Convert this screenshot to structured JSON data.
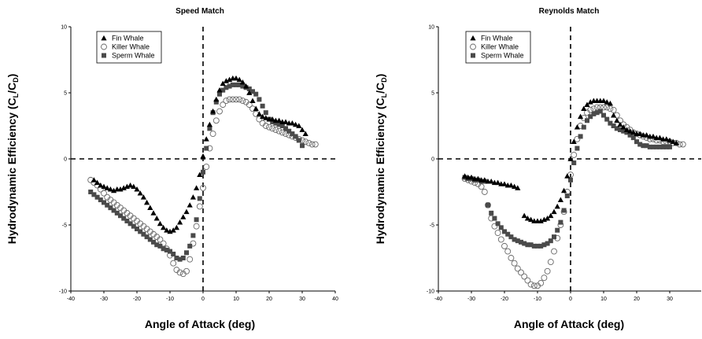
{
  "chart_data": [
    {
      "type": "scatter",
      "title": "Speed Match",
      "xlabel": "Angle of Attack (deg)",
      "ylabel": {
        "main": "Hydrodynamic Efficiency (C",
        "sub1": "L",
        "mid": "/C",
        "sub2": "D",
        "end": ")"
      },
      "xlim": [
        -40,
        40
      ],
      "ylim": [
        -10,
        10
      ],
      "xticks": [
        -40,
        -30,
        -20,
        -10,
        0,
        10,
        20,
        30,
        40
      ],
      "yticks": [
        -10,
        -5,
        0,
        5,
        10
      ],
      "tick_labels_x": [
        "-40",
        "-30",
        "-20",
        "-10",
        "0",
        "10",
        "20",
        "30",
        "40"
      ],
      "tick_labels_y": [
        "-10",
        "-5",
        "0",
        "5",
        "10"
      ],
      "grid": false,
      "reference_lines": {
        "x": 0,
        "y": 0,
        "style": "dashed"
      },
      "legend_position": "top-left",
      "series": [
        {
          "name": "Fin Whale",
          "marker": "triangle",
          "color": "#000000",
          "x": [
            -33,
            -32,
            -31,
            -30,
            -29,
            -28,
            -27,
            -26,
            -25,
            -24,
            -23,
            -22,
            -21,
            -20,
            -19,
            -18,
            -17,
            -16,
            -15,
            -14,
            -13,
            -12,
            -11,
            -10,
            -9,
            -8,
            -7,
            -6,
            -5,
            -4,
            -3,
            -2,
            -1,
            0,
            1,
            2,
            3,
            4,
            5,
            6,
            7,
            8,
            9,
            10,
            11,
            12,
            13,
            14,
            15,
            16,
            17,
            18,
            19,
            20,
            21,
            22,
            23,
            24,
            25,
            26,
            27,
            28,
            29,
            30,
            31
          ],
          "y": [
            -1.6,
            -1.8,
            -2.0,
            -2.1,
            -2.2,
            -2.3,
            -2.4,
            -2.3,
            -2.3,
            -2.2,
            -2.1,
            -2.0,
            -2.1,
            -2.3,
            -2.6,
            -2.9,
            -3.3,
            -3.7,
            -4.1,
            -4.5,
            -4.9,
            -5.2,
            -5.4,
            -5.5,
            -5.4,
            -5.2,
            -4.8,
            -4.4,
            -4.0,
            -3.5,
            -2.9,
            -2.2,
            -1.2,
            0.2,
            1.5,
            2.6,
            3.6,
            4.5,
            5.2,
            5.7,
            5.9,
            6.0,
            6.1,
            6.1,
            6.0,
            5.8,
            5.5,
            5.0,
            4.4,
            3.8,
            3.4,
            3.2,
            3.1,
            3.0,
            3.0,
            2.9,
            2.9,
            2.8,
            2.8,
            2.7,
            2.7,
            2.6,
            2.5,
            2.2,
            1.9
          ]
        },
        {
          "name": "Killer Whale",
          "marker": "circle-open",
          "color": "#000000",
          "x": [
            -34,
            -33,
            -32,
            -31,
            -30,
            -29,
            -28,
            -27,
            -26,
            -25,
            -24,
            -23,
            -22,
            -21,
            -20,
            -19,
            -18,
            -17,
            -16,
            -15,
            -14,
            -13,
            -12,
            -11,
            -10,
            -9,
            -8,
            -7,
            -6,
            -5,
            -4,
            -3,
            -2,
            -1,
            0,
            1,
            2,
            3,
            4,
            5,
            6,
            7,
            8,
            9,
            10,
            11,
            12,
            13,
            14,
            15,
            16,
            17,
            18,
            19,
            20,
            21,
            22,
            23,
            24,
            25,
            26,
            27,
            28,
            29,
            30,
            31,
            32,
            33,
            34
          ],
          "y": [
            -1.6,
            -1.8,
            -2.0,
            -2.3,
            -2.6,
            -2.9,
            -3.1,
            -3.3,
            -3.5,
            -3.7,
            -3.9,
            -4.1,
            -4.3,
            -4.5,
            -4.7,
            -4.9,
            -5.1,
            -5.3,
            -5.5,
            -5.7,
            -5.9,
            -6.1,
            -6.4,
            -6.8,
            -7.3,
            -7.9,
            -8.4,
            -8.6,
            -8.7,
            -8.5,
            -7.6,
            -6.4,
            -5.1,
            -3.6,
            -2.2,
            -0.6,
            0.8,
            1.9,
            2.9,
            3.6,
            4.1,
            4.4,
            4.5,
            4.5,
            4.5,
            4.5,
            4.4,
            4.3,
            4.1,
            3.8,
            3.4,
            3.0,
            2.7,
            2.5,
            2.4,
            2.3,
            2.2,
            2.1,
            2.0,
            1.9,
            1.8,
            1.7,
            1.6,
            1.5,
            1.4,
            1.3,
            1.2,
            1.1,
            1.1
          ]
        },
        {
          "name": "Sperm Whale",
          "marker": "square",
          "color": "#4a4a4a",
          "x": [
            -34,
            -33,
            -32,
            -31,
            -30,
            -29,
            -28,
            -27,
            -26,
            -25,
            -24,
            -23,
            -22,
            -21,
            -20,
            -19,
            -18,
            -17,
            -16,
            -15,
            -14,
            -13,
            -12,
            -11,
            -10,
            -9,
            -8,
            -7,
            -6,
            -5,
            -4,
            -3,
            -2,
            -1,
            0,
            1,
            2,
            3,
            4,
            5,
            6,
            7,
            8,
            9,
            10,
            11,
            12,
            13,
            14,
            15,
            16,
            17,
            18,
            19,
            20,
            21,
            22,
            23,
            24,
            25,
            26,
            27,
            28,
            29,
            30
          ],
          "y": [
            -2.5,
            -2.7,
            -2.9,
            -3.1,
            -3.3,
            -3.5,
            -3.7,
            -3.9,
            -4.1,
            -4.3,
            -4.5,
            -4.7,
            -4.9,
            -5.1,
            -5.3,
            -5.5,
            -5.7,
            -5.9,
            -6.1,
            -6.3,
            -6.5,
            -6.6,
            -6.8,
            -6.9,
            -7.0,
            -7.2,
            -7.5,
            -7.6,
            -7.5,
            -7.1,
            -6.6,
            -5.8,
            -4.6,
            -3.0,
            -1.0,
            0.8,
            2.3,
            3.5,
            4.3,
            4.9,
            5.2,
            5.4,
            5.5,
            5.6,
            5.6,
            5.6,
            5.5,
            5.4,
            5.3,
            5.1,
            4.9,
            4.5,
            4.0,
            3.5,
            3.0,
            2.8,
            2.7,
            2.6,
            2.5,
            2.3,
            2.1,
            1.9,
            1.7,
            1.4,
            1.0
          ]
        }
      ]
    },
    {
      "type": "scatter",
      "title": "Reynolds Match",
      "xlabel": "Angle of Attack (deg)",
      "ylabel": {
        "main": "Hydrodynamic Efficiency (C",
        "sub1": "L",
        "mid": "/C",
        "sub2": "D",
        "end": ")"
      },
      "xlim": [
        -40,
        40
      ],
      "ylim": [
        -10,
        10
      ],
      "xticks": [
        -40,
        -30,
        -20,
        -10,
        0,
        10,
        20,
        30,
        40
      ],
      "yticks": [
        -10,
        -5,
        0,
        5,
        10
      ],
      "tick_labels_x": [
        "-40",
        "-30",
        "-20",
        "-10",
        "0",
        "10",
        "20",
        "30",
        "40"
      ],
      "tick_labels_y": [
        "-10",
        "-5",
        "0",
        "5",
        "10"
      ],
      "grid": false,
      "reference_lines": {
        "x": 0,
        "y": 0,
        "style": "dashed"
      },
      "legend_position": "top-left",
      "series": [
        {
          "name": "Fin Whale",
          "marker": "triangle",
          "color": "#000000",
          "x": [
            -32,
            -31,
            -30,
            -29,
            -28,
            -27,
            -26,
            -25,
            -24,
            -23,
            -22,
            -21,
            -20,
            -19,
            -18,
            -17,
            -16,
            -14,
            -13,
            -12,
            -11,
            -10,
            -9,
            -8,
            -7,
            -6,
            -5,
            -4,
            -3,
            -2,
            -1,
            0,
            1,
            2,
            3,
            4,
            5,
            6,
            7,
            8,
            9,
            10,
            11,
            12,
            13,
            14,
            15,
            16,
            17,
            18,
            19,
            20,
            21,
            22,
            23,
            24,
            25,
            26,
            27,
            28,
            29,
            30,
            31,
            32
          ],
          "y": [
            -1.3,
            -1.4,
            -1.4,
            -1.5,
            -1.5,
            -1.6,
            -1.6,
            -1.7,
            -1.7,
            -1.8,
            -1.8,
            -1.9,
            -1.9,
            -2.0,
            -2.0,
            -2.1,
            -2.2,
            -4.3,
            -4.5,
            -4.6,
            -4.7,
            -4.7,
            -4.7,
            -4.6,
            -4.5,
            -4.3,
            -4.0,
            -3.6,
            -3.1,
            -2.4,
            -1.3,
            0.0,
            1.3,
            2.4,
            3.2,
            3.8,
            4.1,
            4.3,
            4.4,
            4.4,
            4.4,
            4.4,
            4.3,
            4.2,
            3.3,
            2.9,
            2.6,
            2.4,
            2.2,
            2.1,
            2.0,
            1.9,
            1.9,
            1.8,
            1.8,
            1.7,
            1.7,
            1.6,
            1.6,
            1.5,
            1.5,
            1.4,
            1.3,
            1.2
          ]
        },
        {
          "name": "Killer Whale",
          "marker": "circle-open",
          "color": "#000000",
          "x": [
            -32,
            -31,
            -30,
            -29,
            -28,
            -27,
            -26,
            -25,
            -24,
            -23,
            -22,
            -21,
            -20,
            -19,
            -18,
            -17,
            -16,
            -15,
            -14,
            -13,
            -12,
            -11,
            -10,
            -9,
            -8,
            -7,
            -6,
            -5,
            -4,
            -3,
            -2,
            -1,
            0,
            1,
            2,
            3,
            4,
            5,
            6,
            7,
            8,
            9,
            10,
            11,
            12,
            13,
            14,
            15,
            16,
            17,
            18,
            19,
            20,
            21,
            22,
            23,
            24,
            25,
            26,
            27,
            28,
            29,
            30,
            31,
            32,
            33,
            34
          ],
          "y": [
            -1.5,
            -1.6,
            -1.7,
            -1.8,
            -1.9,
            -2.1,
            -2.5,
            -3.5,
            -4.5,
            -5.1,
            -5.6,
            -6.1,
            -6.6,
            -7.0,
            -7.5,
            -7.9,
            -8.3,
            -8.6,
            -8.9,
            -9.2,
            -9.5,
            -9.6,
            -9.6,
            -9.4,
            -9.0,
            -8.5,
            -7.8,
            -7.0,
            -6.0,
            -5.0,
            -4.0,
            -2.5,
            -1.2,
            0.3,
            1.5,
            2.5,
            3.1,
            3.5,
            3.7,
            3.8,
            3.9,
            3.9,
            3.9,
            3.9,
            3.8,
            3.7,
            3.3,
            2.9,
            2.6,
            2.4,
            2.2,
            2.0,
            1.9,
            1.8,
            1.7,
            1.6,
            1.5,
            1.5,
            1.4,
            1.4,
            1.3,
            1.3,
            1.3,
            1.2,
            1.2,
            1.1,
            1.1
          ]
        },
        {
          "name": "Sperm Whale",
          "marker": "square",
          "color": "#4a4a4a",
          "x": [
            -32,
            -31,
            -30,
            -29,
            -28,
            -27,
            -26,
            -25,
            -24,
            -23,
            -22,
            -21,
            -20,
            -19,
            -18,
            -17,
            -16,
            -15,
            -14,
            -13,
            -12,
            -11,
            -10,
            -9,
            -8,
            -7,
            -6,
            -5,
            -4,
            -3,
            -2,
            -1,
            0,
            1,
            2,
            3,
            4,
            5,
            6,
            7,
            8,
            9,
            10,
            11,
            12,
            13,
            14,
            15,
            16,
            17,
            18,
            19,
            20,
            21,
            22,
            23,
            24,
            25,
            26,
            27,
            28,
            29,
            30
          ],
          "y": [
            -1.4,
            -1.5,
            -1.5,
            -1.6,
            -1.6,
            -1.7,
            -1.7,
            -3.5,
            -4.1,
            -4.5,
            -4.9,
            -5.2,
            -5.5,
            -5.7,
            -5.9,
            -6.1,
            -6.2,
            -6.3,
            -6.4,
            -6.5,
            -6.5,
            -6.6,
            -6.6,
            -6.6,
            -6.5,
            -6.4,
            -6.2,
            -5.9,
            -5.4,
            -4.8,
            -3.9,
            -2.8,
            -1.6,
            -0.3,
            0.8,
            1.7,
            2.4,
            2.9,
            3.2,
            3.4,
            3.5,
            3.6,
            3.3,
            3.0,
            2.7,
            2.5,
            2.3,
            2.2,
            2.1,
            2.0,
            1.8,
            1.6,
            1.3,
            1.1,
            1.0,
            1.0,
            0.9,
            0.9,
            0.9,
            0.9,
            0.9,
            0.9,
            0.9
          ]
        }
      ]
    }
  ]
}
